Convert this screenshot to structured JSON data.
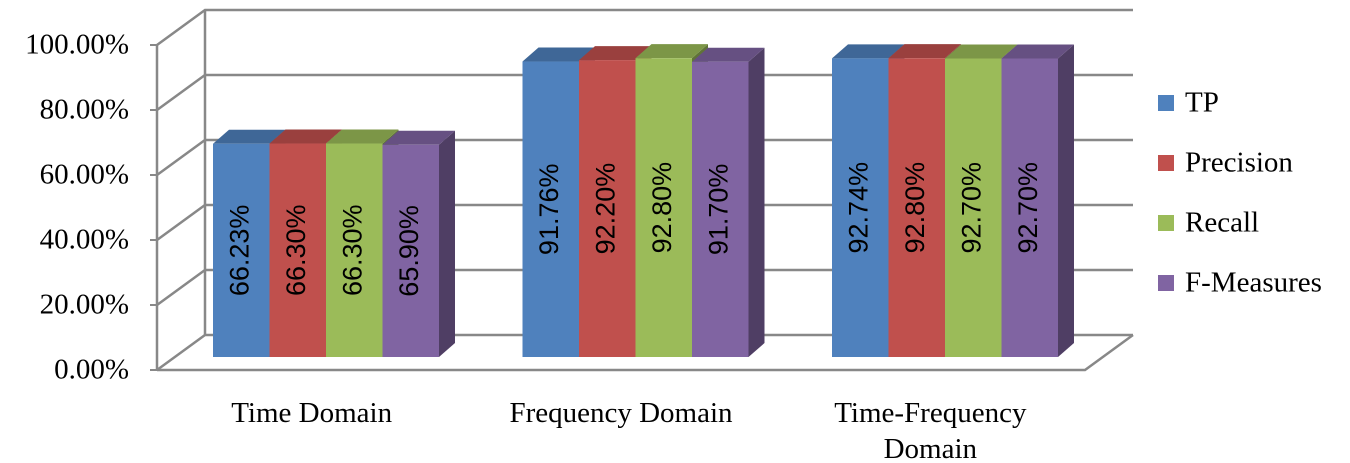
{
  "chart_data": {
    "type": "bar3d",
    "categories": [
      "Time Domain",
      "Frequency Domain",
      "Time-Frequency Domain"
    ],
    "series": [
      {
        "name": "TP",
        "color": "#4f81bd",
        "values": [
          66.23,
          91.76,
          92.74
        ],
        "value_labels": [
          "66.23%",
          "91.76%",
          "92.74%"
        ]
      },
      {
        "name": "Precision",
        "color": "#c0504d",
        "values": [
          66.3,
          92.2,
          92.8
        ],
        "value_labels": [
          "66.30%",
          "92.20%",
          "92.80%"
        ]
      },
      {
        "name": "Recall",
        "color": "#9bbb59",
        "values": [
          66.3,
          92.8,
          92.7
        ],
        "value_labels": [
          "66.30%",
          "92.80%",
          "92.70%"
        ]
      },
      {
        "name": "F-Measures",
        "color": "#8064a2",
        "values": [
          65.9,
          91.7,
          92.7
        ],
        "value_labels": [
          "65.90%",
          "91.70%",
          "92.70%"
        ]
      }
    ],
    "ylim": [
      0,
      100
    ],
    "yticks": [
      {
        "value": 0,
        "label": "0.00%"
      },
      {
        "value": 20,
        "label": "20.00%"
      },
      {
        "value": 40,
        "label": "40.00%"
      },
      {
        "value": 60,
        "label": "60.00%"
      },
      {
        "value": 80,
        "label": "80.00%"
      },
      {
        "value": 100,
        "label": "100.00%"
      }
    ],
    "grid": true,
    "legend": "right"
  }
}
